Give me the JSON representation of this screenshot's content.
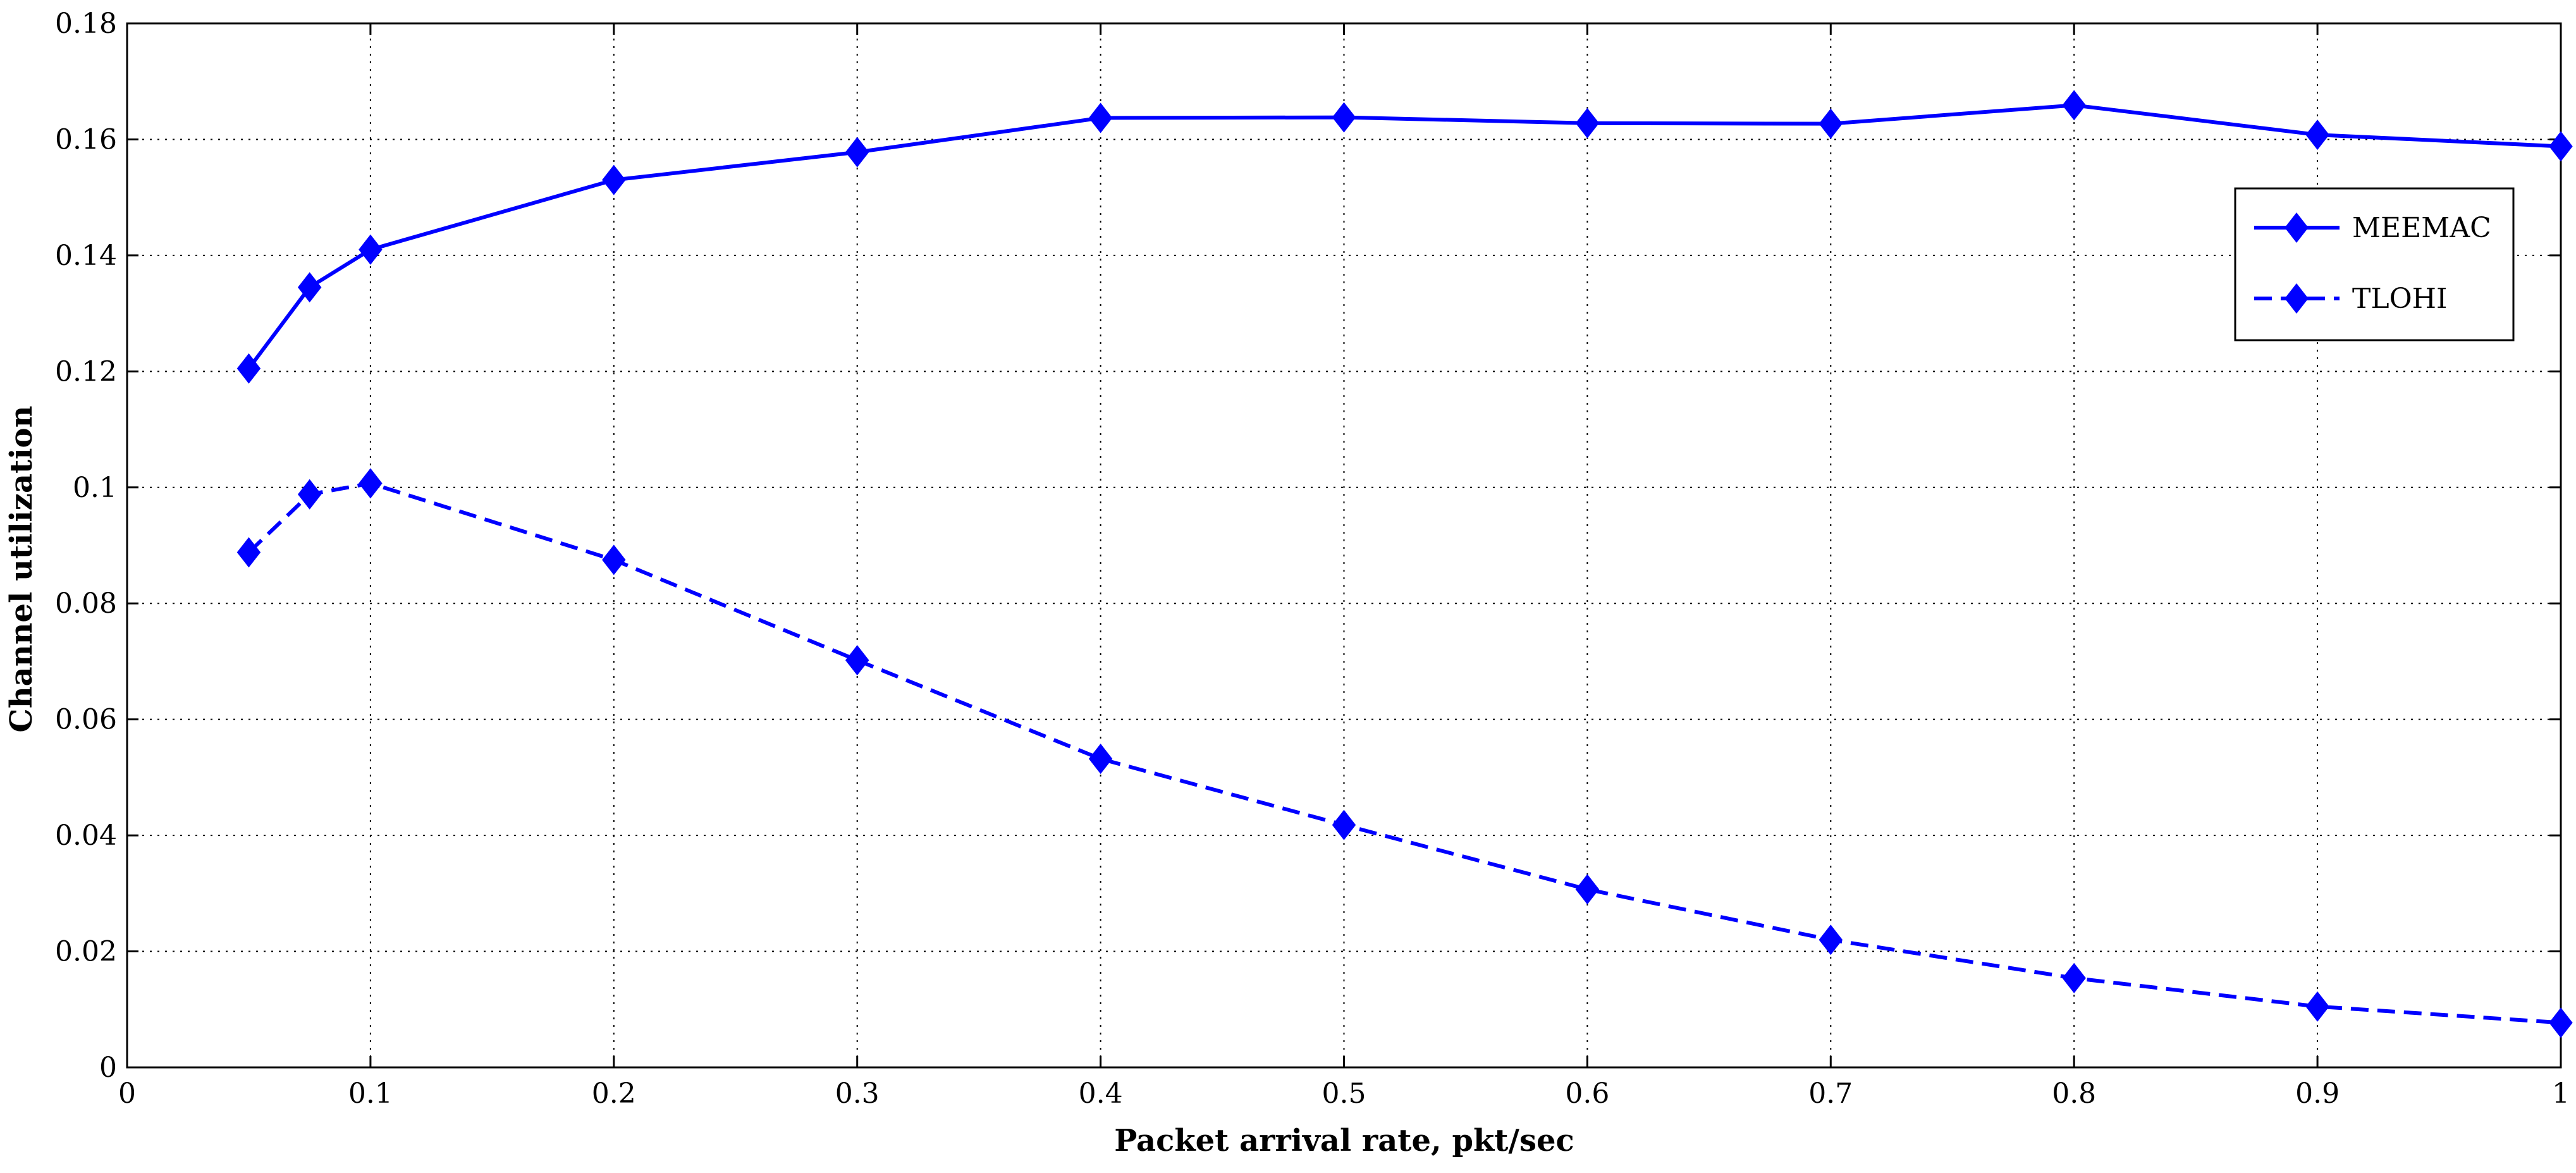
{
  "chart_data": {
    "type": "line",
    "title": "",
    "xlabel": "Packet arrival rate, pkt/sec",
    "ylabel": "Channel utilization",
    "xlim": [
      0,
      1
    ],
    "ylim": [
      0,
      0.18
    ],
    "xticks": [
      0,
      0.1,
      0.2,
      0.3,
      0.4,
      0.5,
      0.6,
      0.7,
      0.8,
      0.9,
      1
    ],
    "xtick_labels": [
      "0",
      "0.1",
      "0.2",
      "0.3",
      "0.4",
      "0.5",
      "0.6",
      "0.7",
      "0.8",
      "0.9",
      "1"
    ],
    "yticks": [
      0,
      0.02,
      0.04,
      0.06,
      0.08,
      0.1,
      0.12,
      0.14,
      0.16,
      0.18
    ],
    "ytick_labels": [
      "0",
      "0.02",
      "0.04",
      "0.06",
      "0.08",
      "0.1",
      "0.12",
      "0.14",
      "0.16",
      "0.18"
    ],
    "grid": true,
    "legend_position": "top-right",
    "x": [
      0.05,
      0.075,
      0.1,
      0.2,
      0.3,
      0.4,
      0.5,
      0.6,
      0.7,
      0.8,
      0.9,
      1.0
    ],
    "series": [
      {
        "name": "MEEMAC",
        "line_style": "solid",
        "marker": "diamond",
        "color": "#0000ff",
        "values": [
          0.1205,
          0.1345,
          0.141,
          0.153,
          0.1578,
          0.1637,
          0.1638,
          0.1628,
          0.1627,
          0.1659,
          0.1608,
          0.1588
        ]
      },
      {
        "name": "TLOHI",
        "line_style": "dashed",
        "marker": "diamond",
        "color": "#0000ff",
        "values": [
          0.0888,
          0.0988,
          0.1007,
          0.0875,
          0.0702,
          0.0532,
          0.0418,
          0.0307,
          0.022,
          0.0154,
          0.0105,
          0.0077
        ]
      }
    ]
  }
}
